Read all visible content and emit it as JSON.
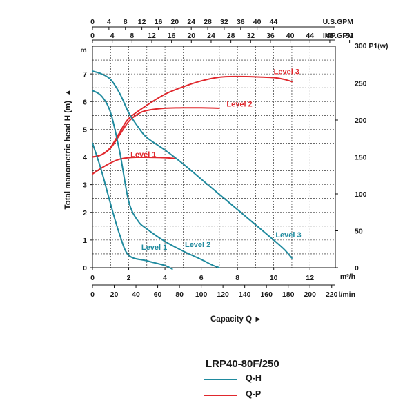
{
  "chart_data": {
    "type": "line",
    "model": "LRP40-80F/250",
    "x_axes": {
      "us_gpm": {
        "label": "U.S.GPM",
        "ticks": [
          0,
          4,
          8,
          12,
          16,
          20,
          24,
          28,
          32,
          36,
          40,
          44
        ]
      },
      "imp_gpm": {
        "label": "IMP.GPM",
        "ticks": [
          0,
          4,
          8,
          12,
          16,
          20,
          24,
          28,
          32,
          36,
          40,
          44,
          48,
          52
        ]
      },
      "m3h": {
        "label": "m³/h",
        "ticks": [
          0,
          2,
          4,
          6,
          8,
          10,
          12
        ]
      },
      "lmin": {
        "label": "l/min",
        "ticks": [
          0,
          20,
          40,
          60,
          80,
          100,
          120,
          140,
          160,
          180,
          200,
          220
        ]
      }
    },
    "y_left": {
      "label": "Total manometric head H (m)",
      "unit": "m",
      "ticks": [
        0,
        1,
        2,
        3,
        4,
        5,
        6,
        7
      ],
      "ylim": [
        0,
        8
      ]
    },
    "y_right": {
      "label": "P1(w)",
      "top_tick": "300",
      "ticks": [
        0,
        50,
        100,
        150,
        200,
        250,
        300
      ],
      "ylim": [
        0,
        300
      ]
    },
    "xlabel": "Capacity Q ►",
    "colors": {
      "qh": "#1f8a9e",
      "qp": "#e0282d"
    },
    "series_qh": [
      {
        "name": "Level 1",
        "points": [
          [
            0,
            4.5
          ],
          [
            0.5,
            3.5
          ],
          [
            1,
            2.3
          ],
          [
            1.5,
            1.2
          ],
          [
            2,
            0.45
          ],
          [
            3,
            0.25
          ],
          [
            4,
            0.08
          ],
          [
            4.4,
            -0.05
          ]
        ]
      },
      {
        "name": "Level 2",
        "points": [
          [
            0,
            6.4
          ],
          [
            0.5,
            6.2
          ],
          [
            1,
            5.6
          ],
          [
            1.5,
            4.2
          ],
          [
            2,
            2.4
          ],
          [
            2.5,
            1.7
          ],
          [
            3,
            1.4
          ],
          [
            4,
            0.95
          ],
          [
            5,
            0.6
          ],
          [
            6,
            0.3
          ],
          [
            6.6,
            0.1
          ],
          [
            7,
            0
          ]
        ]
      },
      {
        "name": "Level 3",
        "points": [
          [
            0,
            7.1
          ],
          [
            0.5,
            7.0
          ],
          [
            1,
            6.8
          ],
          [
            1.5,
            6.3
          ],
          [
            2,
            5.6
          ],
          [
            2.5,
            5.1
          ],
          [
            3,
            4.7
          ],
          [
            4,
            4.25
          ],
          [
            5,
            3.75
          ],
          [
            6,
            3.2
          ],
          [
            7,
            2.65
          ],
          [
            8,
            2.1
          ],
          [
            9,
            1.55
          ],
          [
            10,
            1.0
          ],
          [
            10.6,
            0.65
          ],
          [
            11,
            0.35
          ]
        ]
      }
    ],
    "series_qp": [
      {
        "name": "Level 1",
        "points": [
          [
            0,
            127
          ],
          [
            0.5,
            135
          ],
          [
            1,
            142
          ],
          [
            1.5,
            147
          ],
          [
            2,
            149
          ],
          [
            2.5,
            149.5
          ],
          [
            3,
            149.5
          ],
          [
            4,
            149
          ],
          [
            4.5,
            148
          ]
        ]
      },
      {
        "name": "Level 2",
        "points": [
          [
            0,
            150
          ],
          [
            0.5,
            153
          ],
          [
            1,
            162
          ],
          [
            1.5,
            180
          ],
          [
            2,
            198
          ],
          [
            2.5,
            208
          ],
          [
            3,
            213
          ],
          [
            4,
            216
          ],
          [
            5,
            216.5
          ],
          [
            6,
            216.5
          ],
          [
            7,
            216
          ]
        ]
      },
      {
        "name": "Level 3",
        "points": [
          [
            0,
            150
          ],
          [
            0.5,
            153
          ],
          [
            1,
            163
          ],
          [
            1.5,
            183
          ],
          [
            2,
            202
          ],
          [
            3,
            220
          ],
          [
            4,
            235
          ],
          [
            5,
            245
          ],
          [
            6,
            253
          ],
          [
            7,
            258
          ],
          [
            8,
            259
          ],
          [
            9,
            258.5
          ],
          [
            10,
            257.5
          ],
          [
            10.6,
            255
          ],
          [
            11,
            252
          ]
        ]
      }
    ],
    "annotations": {
      "qh": [
        {
          "text": "Level 1",
          "x": 2.7,
          "y": 0.65
        },
        {
          "text": "Level 2",
          "x": 5.1,
          "y": 0.75
        },
        {
          "text": "Level 3",
          "x": 10.1,
          "y": 1.1
        }
      ],
      "qp": [
        {
          "text": "Level 1",
          "x": 2.1,
          "p": 150
        },
        {
          "text": "Level 2",
          "x": 7.4,
          "p": 218
        },
        {
          "text": "Level 3",
          "x": 10.0,
          "p": 262
        }
      ]
    },
    "legend": {
      "title": "LRP40-80F/250",
      "items": [
        {
          "name": "Q-H",
          "color": "#1f8a9e"
        },
        {
          "name": "Q-P",
          "color": "#e0282d"
        }
      ]
    }
  }
}
